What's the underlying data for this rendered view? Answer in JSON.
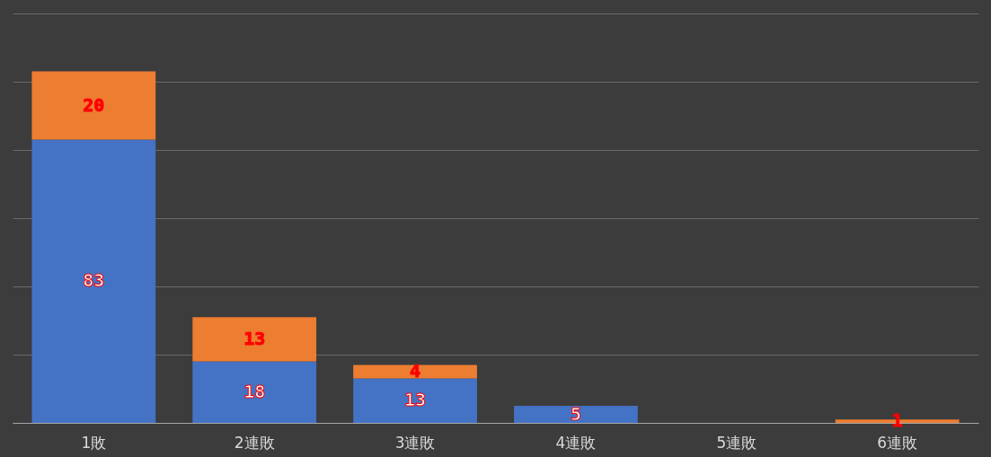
{
  "chart_data": {
    "type": "bar",
    "stacked": true,
    "categories": [
      "1敗",
      "2連敗",
      "3連敗",
      "4連敗",
      "5連敗",
      "6連敗"
    ],
    "series": [
      {
        "color": "#4472c4",
        "values": [
          83,
          18,
          13,
          5,
          null,
          null
        ]
      },
      {
        "color": "#ed7d31",
        "values": [
          20,
          13,
          4,
          null,
          null,
          1
        ]
      }
    ],
    "ylim": [
      0,
      120
    ],
    "yticks": [
      {
        "value": 0,
        "label": null
      },
      {
        "value": 20,
        "label": null
      },
      {
        "value": 40,
        "label": null
      },
      {
        "value": 60,
        "label": null
      },
      {
        "value": 80,
        "label": null
      },
      {
        "value": 100,
        "label": null
      },
      {
        "value": 120,
        "label": null
      }
    ],
    "grid": "y",
    "tick_labels": "x",
    "data_labels": true
  }
}
